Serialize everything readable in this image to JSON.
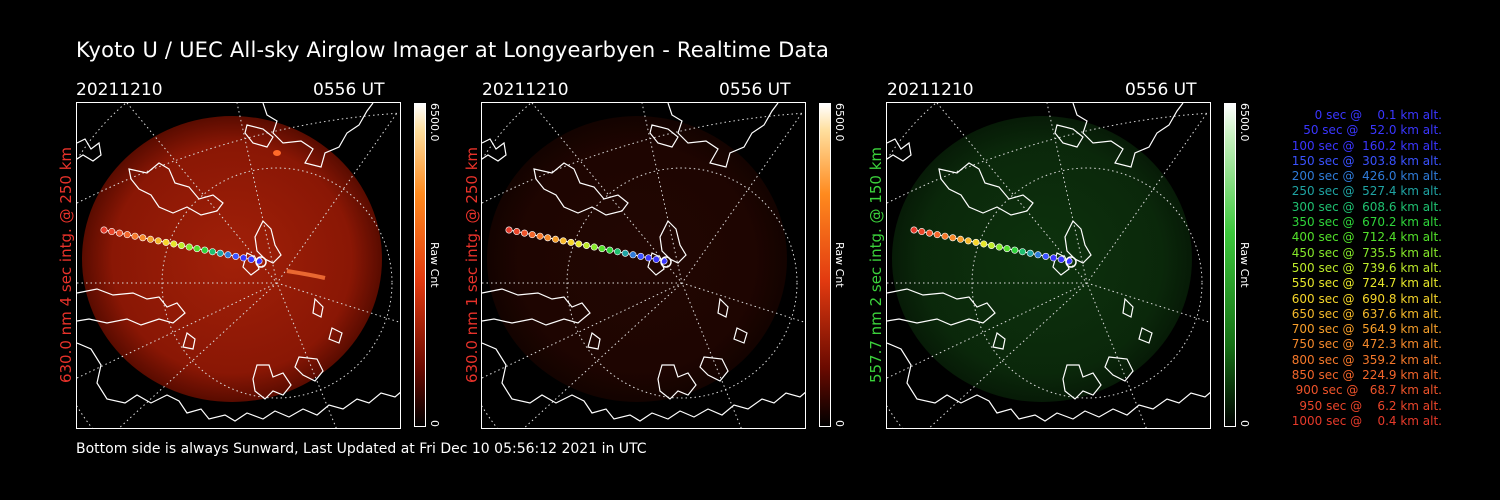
{
  "title": "Kyoto U / UEC All-sky Airglow Imager at Longyearbyen - Realtime Data",
  "panels": [
    {
      "date": "20211210",
      "time": "0556 UT",
      "ylabel": "630.0 nm 4 sec intg. @ 250 km",
      "label_color": "#e8322a",
      "cbar_max": "6500.0",
      "cbar_min": "0",
      "cbar_label": "Raw Cnt",
      "tint": "red",
      "glow_intensity": 0.85
    },
    {
      "date": "20211210",
      "time": "0556 UT",
      "ylabel": "630.0 nm 1 sec intg. @ 250 km",
      "label_color": "#e8322a",
      "cbar_max": "6500.0",
      "cbar_min": "0",
      "cbar_label": "Raw Cnt",
      "tint": "red",
      "glow_intensity": 0.18
    },
    {
      "date": "20211210",
      "time": "0556 UT",
      "ylabel": "557.7 nm 2 sec intg. @ 150 km",
      "label_color": "#3bd13b",
      "cbar_max": "6500.0",
      "cbar_min": "0",
      "cbar_label": "Raw Cnt",
      "tint": "green",
      "glow_intensity": 0.35
    }
  ],
  "legend": [
    {
      "text": "   0 sec @    0.1 km alt.",
      "color": "#3a36ff"
    },
    {
      "text": "  50 sec @   52.0 km alt.",
      "color": "#3a36ff"
    },
    {
      "text": " 100 sec @  160.2 km alt.",
      "color": "#3a36ff"
    },
    {
      "text": " 150 sec @  303.8 km alt.",
      "color": "#3a52ff"
    },
    {
      "text": " 200 sec @  426.0 km alt.",
      "color": "#2f7bd9"
    },
    {
      "text": " 250 sec @  527.4 km alt.",
      "color": "#1fa3a3"
    },
    {
      "text": " 300 sec @  608.6 km alt.",
      "color": "#1fc070"
    },
    {
      "text": " 350 sec @  670.2 km alt.",
      "color": "#2fd43a"
    },
    {
      "text": " 400 sec @  712.4 km alt.",
      "color": "#52e02a"
    },
    {
      "text": " 450 sec @  735.5 km alt.",
      "color": "#86e82a"
    },
    {
      "text": " 500 sec @  739.6 km alt.",
      "color": "#bdea2a"
    },
    {
      "text": " 550 sec @  724.7 km alt.",
      "color": "#e6e62a"
    },
    {
      "text": " 600 sec @  690.8 km alt.",
      "color": "#f5d52a"
    },
    {
      "text": " 650 sec @  637.6 km alt.",
      "color": "#f5b82a"
    },
    {
      "text": " 700 sec @  564.9 km alt.",
      "color": "#f59e2a"
    },
    {
      "text": " 750 sec @  472.3 km alt.",
      "color": "#f5892a"
    },
    {
      "text": " 800 sec @  359.2 km alt.",
      "color": "#f5782a"
    },
    {
      "text": " 850 sec @  224.9 km alt.",
      "color": "#f2652a"
    },
    {
      "text": " 900 sec @   68.7 km alt.",
      "color": "#ee532a"
    },
    {
      "text": " 950 sec @    6.2 km alt.",
      "color": "#ea452a"
    },
    {
      "text": "1000 sec @    0.4 km alt.",
      "color": "#e63a2a"
    }
  ],
  "footer": "Bottom side is always Sunward, Last Updated at Fri Dec 10 05:56:12 2021 in UTC"
}
